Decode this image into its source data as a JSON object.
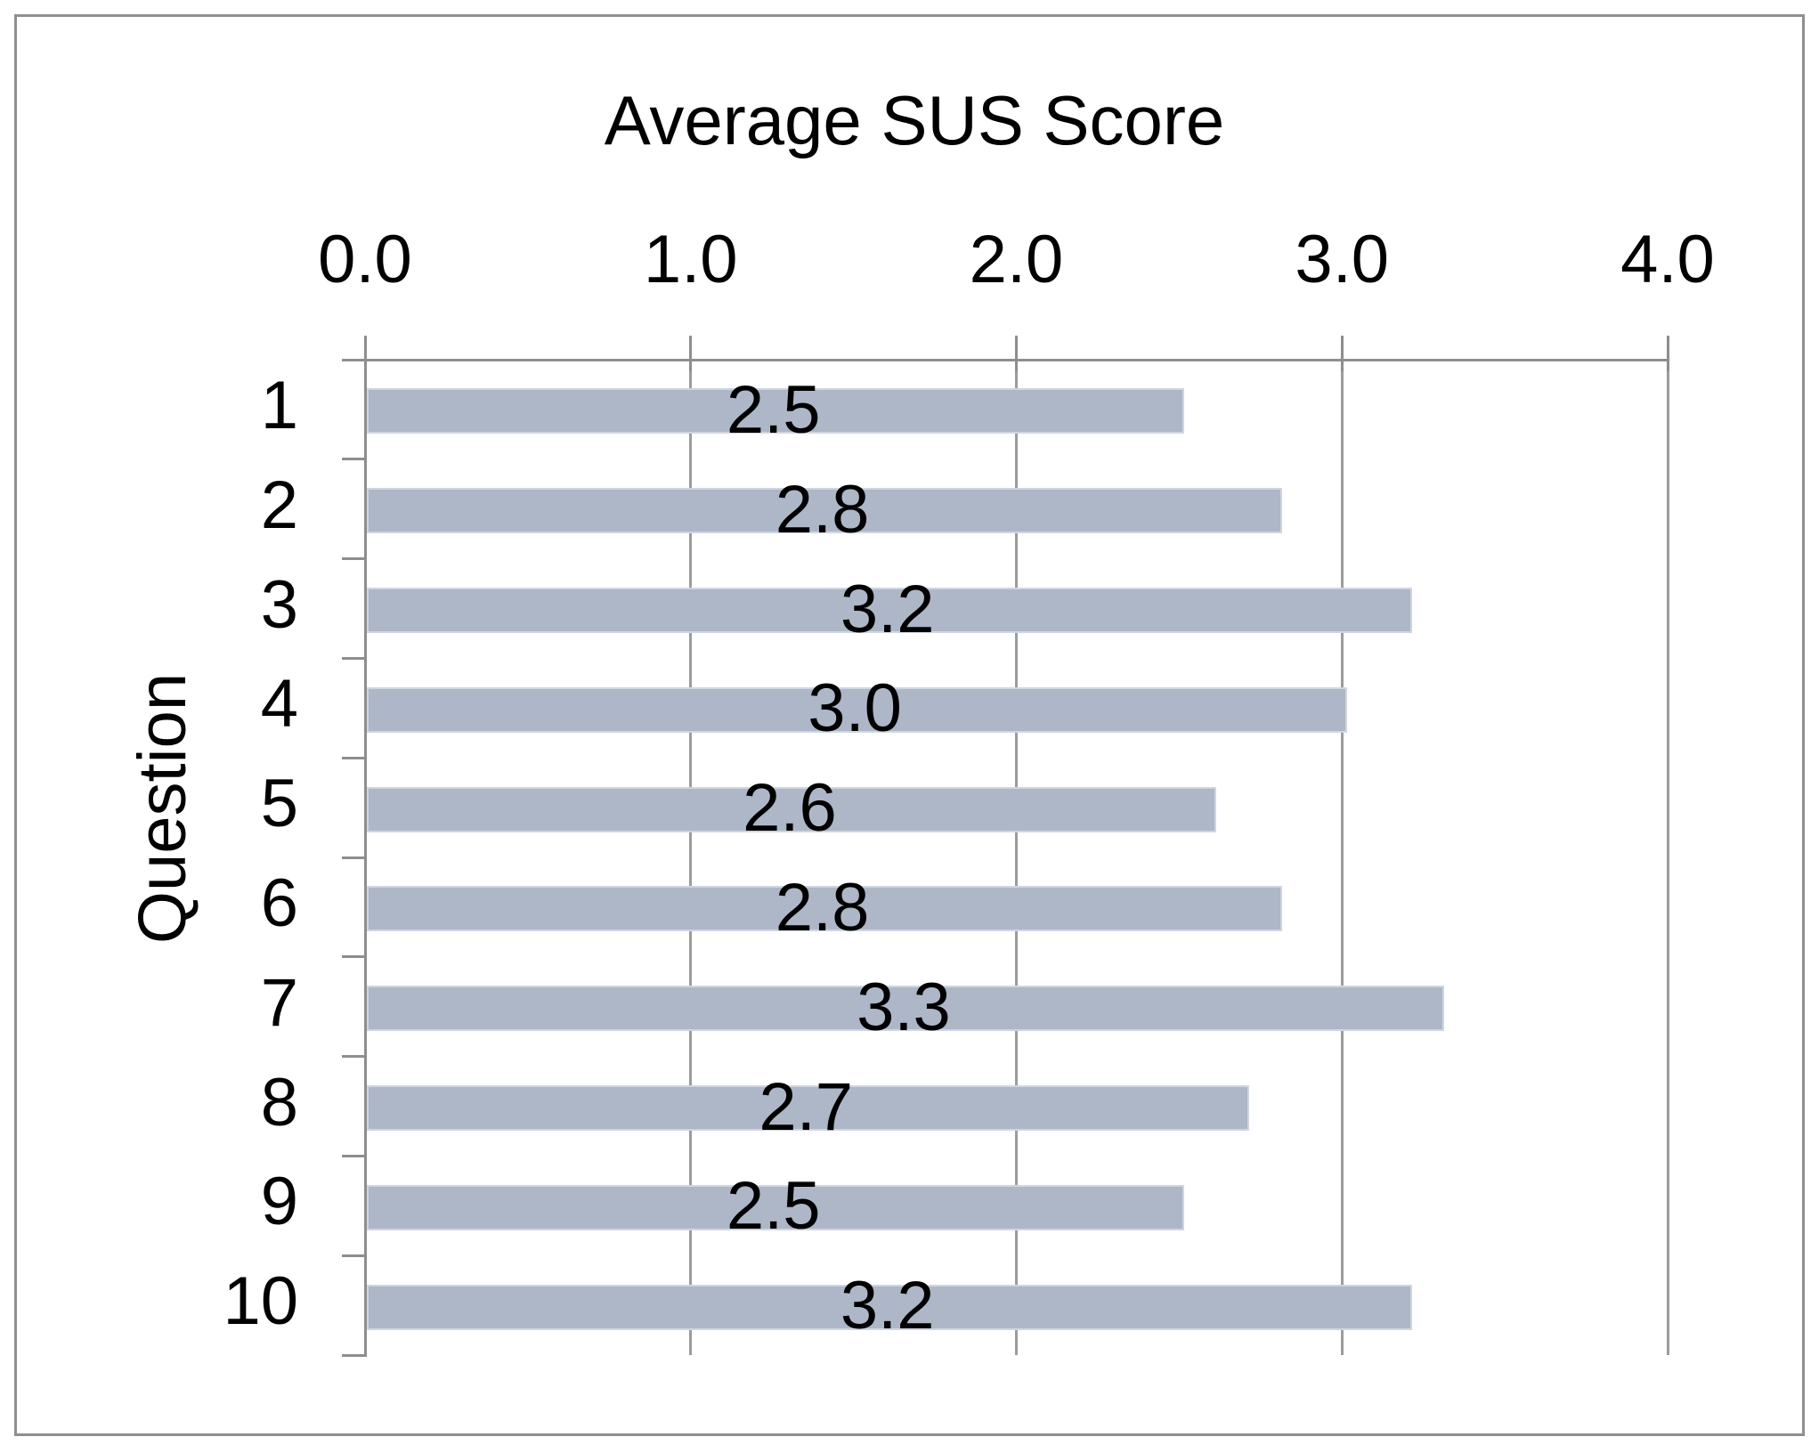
{
  "chart_data": {
    "type": "bar",
    "orientation": "horizontal",
    "title": "Average SUS Score",
    "ylabel": "Question",
    "xlabel": "",
    "categories": [
      "1",
      "2",
      "3",
      "4",
      "5",
      "6",
      "7",
      "8",
      "9",
      "10"
    ],
    "values": [
      2.5,
      2.8,
      3.2,
      3.0,
      2.6,
      2.8,
      3.3,
      2.7,
      2.5,
      3.2
    ],
    "data_labels": [
      "2.5",
      "2.8",
      "3.2",
      "3.0",
      "2.6",
      "2.8",
      "3.3",
      "2.7",
      "2.5",
      "3.2"
    ],
    "xlim": [
      0,
      4
    ],
    "xticks": [
      0,
      1,
      2,
      3,
      4
    ],
    "xtick_labels": [
      "0.0",
      "1.0",
      "2.0",
      "3.0",
      "4.0"
    ],
    "grid": true,
    "legend": false,
    "colors": {
      "bar_fill": "#adb7c8",
      "bar_edge": "#cfd6e0",
      "gridline": "#9c9c9c",
      "axis": "#8e8e8e",
      "frame_border": "#8f8f8f",
      "text": "#000000"
    }
  }
}
